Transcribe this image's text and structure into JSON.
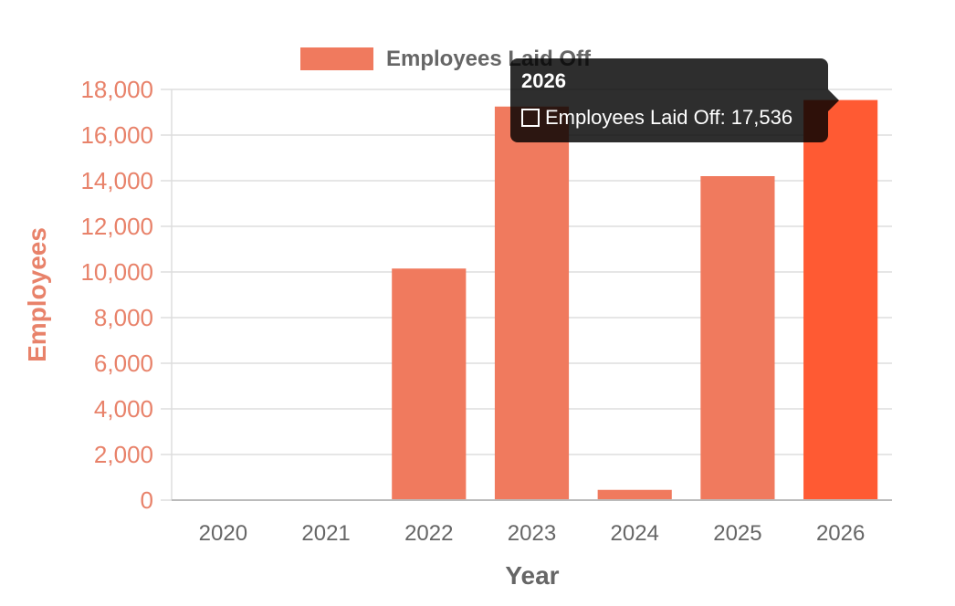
{
  "colors": {
    "bar": "#f07a5e",
    "bar_active": "#ff5a33",
    "axis_text": "#e8826a",
    "tick_text": "#666666",
    "grid": "#dddddd"
  },
  "chart_data": {
    "type": "bar",
    "categories": [
      "2020",
      "2021",
      "2022",
      "2023",
      "2024",
      "2025",
      "2026"
    ],
    "series": [
      {
        "name": "Employees Laid Off",
        "values": [
          0,
          0,
          10150,
          17250,
          450,
          14200,
          17536
        ]
      }
    ],
    "xlabel": "Year",
    "ylabel": "Employees",
    "ylim": [
      0,
      18000
    ],
    "yticks": [
      "0",
      "2,000",
      "4,000",
      "6,000",
      "8,000",
      "10,000",
      "12,000",
      "14,000",
      "16,000",
      "18,000"
    ],
    "grid": true,
    "legend_position": "top",
    "active_category": "2026"
  },
  "tooltip": {
    "title": "2026",
    "label": "Employees Laid Off: 17,536"
  }
}
